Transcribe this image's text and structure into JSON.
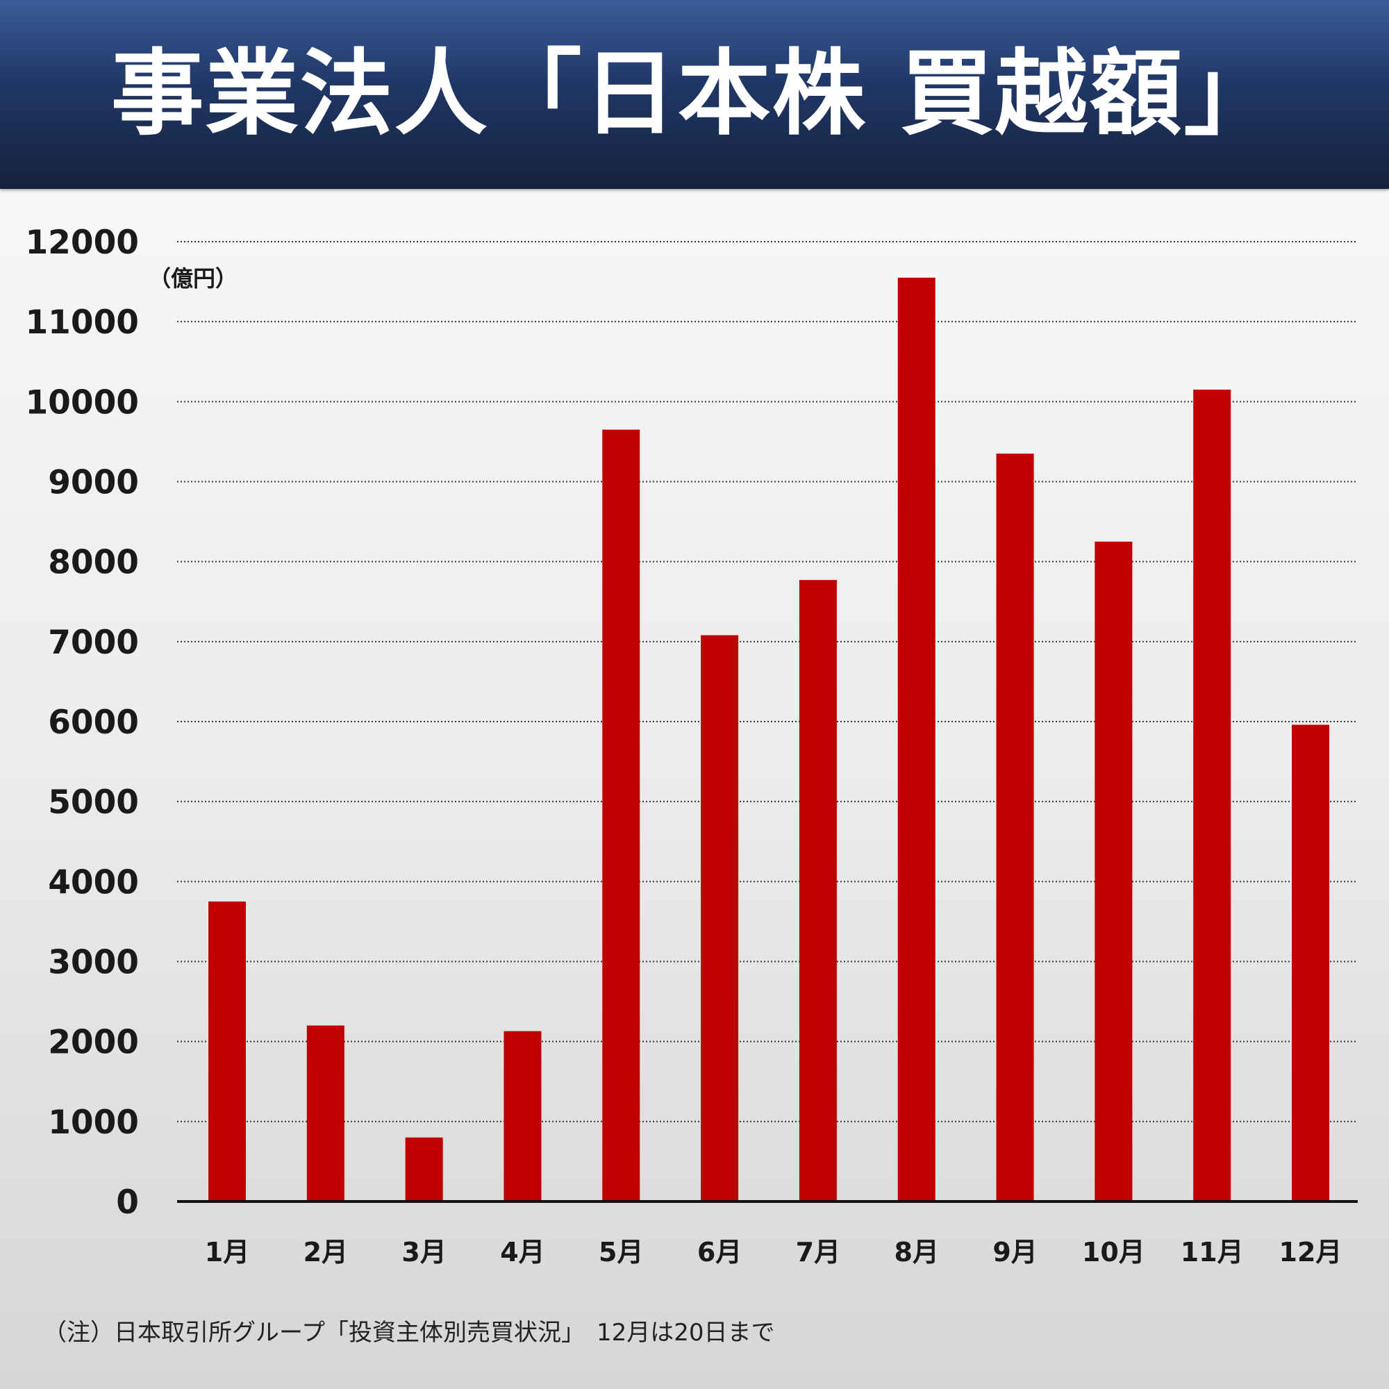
{
  "header": {
    "title": "事業法人「日本株 買越額」"
  },
  "chart_data": {
    "type": "bar",
    "title": "事業法人「日本株 買越額」",
    "unit_label": "（億円）",
    "xlabel": "",
    "ylabel": "",
    "categories": [
      "1月",
      "2月",
      "3月",
      "4月",
      "5月",
      "6月",
      "7月",
      "8月",
      "9月",
      "10月",
      "11月",
      "12月"
    ],
    "values": [
      3750,
      2200,
      800,
      2130,
      9650,
      7080,
      7770,
      11550,
      9350,
      8250,
      10150,
      5960
    ],
    "ylim": [
      0,
      12000
    ],
    "yticks": [
      "0",
      "1000",
      "2000",
      "3000",
      "4000",
      "5000",
      "6000",
      "7000",
      "8000",
      "9000",
      "10000",
      "11000",
      "12000"
    ],
    "grid": true,
    "grid_style": "dotted",
    "legend": "none",
    "bar_color": "#c00000"
  },
  "footer": {
    "note": "（注）日本取引所グループ「投資主体別売買状況」　12月は20日まで"
  }
}
